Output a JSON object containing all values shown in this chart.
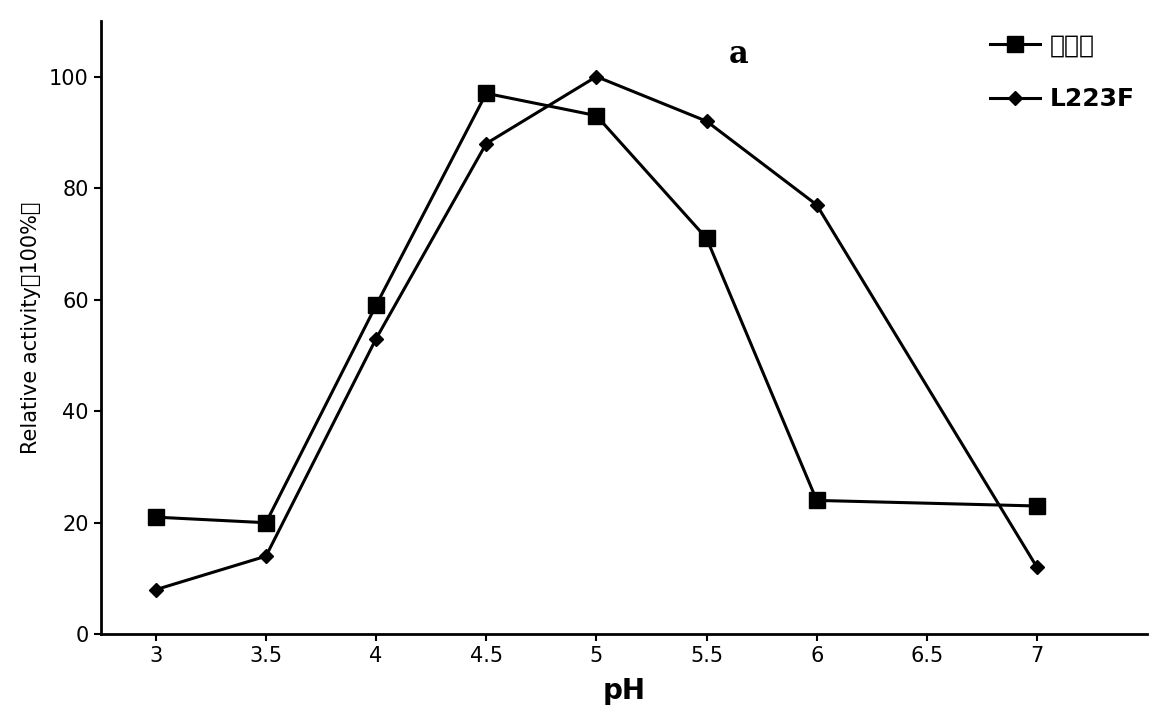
{
  "wildtype_x": [
    3,
    3.5,
    4,
    4.5,
    5,
    5.5,
    6,
    7
  ],
  "wildtype_y": [
    21,
    20,
    59,
    97,
    93,
    71,
    24,
    23
  ],
  "l223f_x": [
    3,
    3.5,
    4,
    4.5,
    5,
    5.5,
    6,
    7
  ],
  "l223f_y": [
    8,
    14,
    53,
    88,
    100,
    92,
    77,
    12
  ],
  "wildtype_label": "野生型",
  "l223f_label": "L223F",
  "xlabel": "pH",
  "ylabel": "Relative activity（100%）",
  "annotation": "a",
  "xlim": [
    2.75,
    7.5
  ],
  "ylim": [
    0,
    110
  ],
  "xticks": [
    3,
    3.5,
    4,
    4.5,
    5,
    5.5,
    6,
    6.5,
    7
  ],
  "yticks": [
    0,
    20,
    40,
    60,
    80,
    100
  ],
  "line_color": "#000000",
  "bg_color": "#ffffff",
  "line_width": 2.2,
  "marker_size_square": 12,
  "marker_size_diamond": 7,
  "ylabel_fontsize": 15,
  "xlabel_fontsize": 20,
  "tick_fontsize": 15,
  "legend_fontsize": 18,
  "annotation_fontsize": 22
}
